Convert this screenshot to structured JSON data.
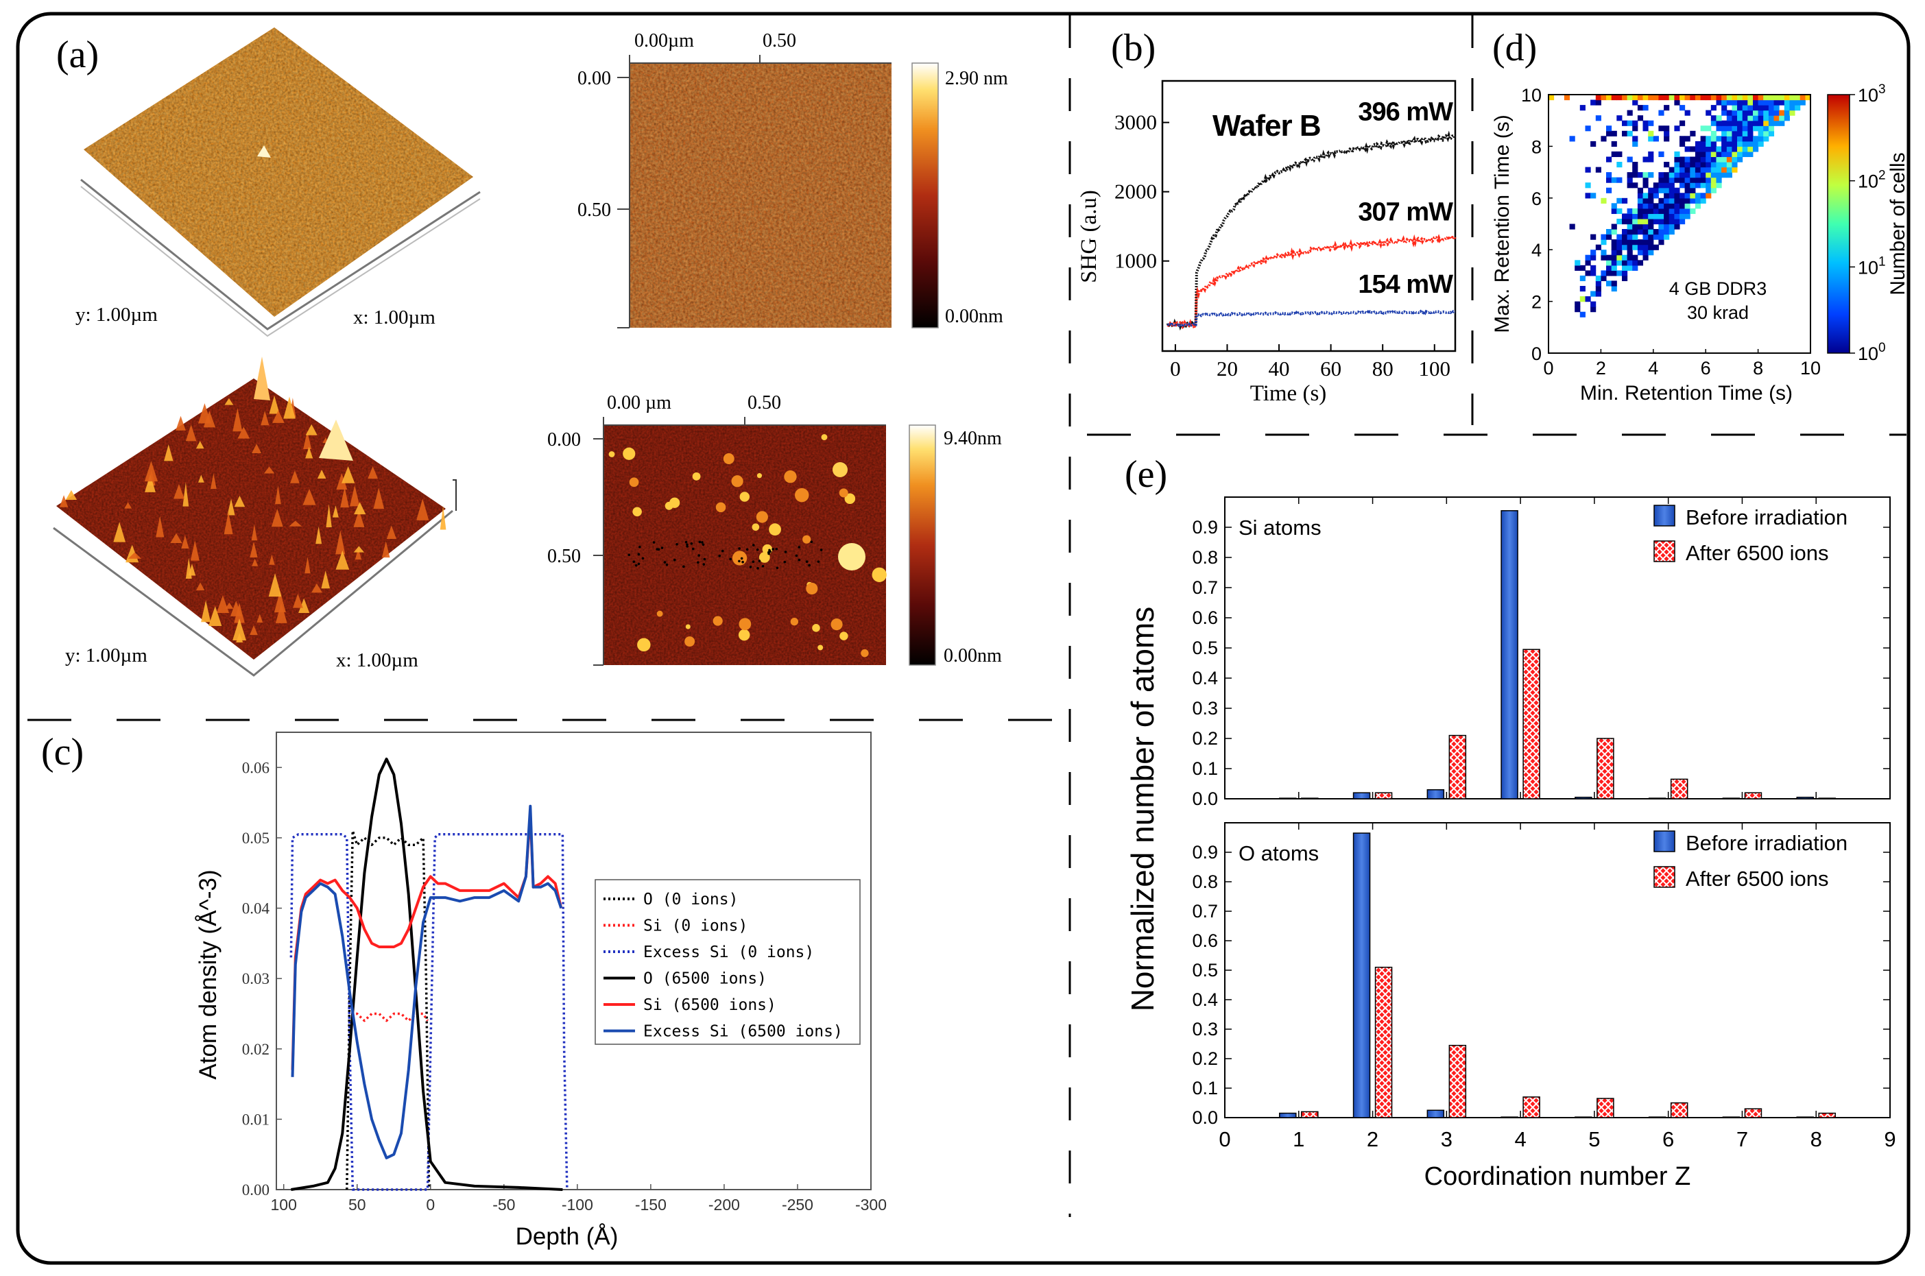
{
  "panels": {
    "a": {
      "label": "(a)",
      "top3d": {
        "y_label": "y: 1.00µm",
        "x_label": "x: 1.00µm"
      },
      "bottom3d": {
        "y_label": "y: 1.00µm",
        "x_label": "x: 1.00µm"
      },
      "top_map": {
        "x_ticks": [
          "0.00µm",
          "0.50"
        ],
        "y_ticks": [
          "0.00",
          "0.50"
        ],
        "cbar_max": "2.90 nm",
        "cbar_min": "0.00nm"
      },
      "bottom_map": {
        "x_ticks": [
          "0.00 µm",
          "0.50"
        ],
        "y_ticks": [
          "0.00",
          "0.50"
        ],
        "cbar_max": "9.40nm",
        "cbar_min": "0.00nm"
      }
    },
    "b": {
      "label": "(b)"
    },
    "c": {
      "label": "(c)"
    },
    "d": {
      "label": "(d)"
    },
    "e": {
      "label": "(e)"
    }
  },
  "chart_data": [
    {
      "id": "b",
      "type": "scatter",
      "title": "Wafer B",
      "xlabel": "Time (s)",
      "ylabel": "SHG (a.u)",
      "xlim": [
        -5,
        108
      ],
      "ylim": [
        -300,
        3600
      ],
      "x_ticks": [
        0,
        20,
        40,
        60,
        80,
        100
      ],
      "y_ticks": [
        1000,
        2000,
        3000
      ],
      "series": [
        {
          "name": "396 mW",
          "color": "#111111",
          "onset": 8,
          "base": 80,
          "start": 800,
          "rise": 1650,
          "tau": 18,
          "slope": 3.5
        },
        {
          "name": "307 mW",
          "color": "#ff2a1a",
          "onset": 8,
          "base": 80,
          "start": 520,
          "rise": 700,
          "tau": 25,
          "slope": 1.2
        },
        {
          "name": "154 mW",
          "color": "#1e3fae",
          "onset": 8,
          "base": 80,
          "start": 220,
          "rise": 25,
          "tau": 30,
          "slope": 0.2
        }
      ]
    },
    {
      "id": "d",
      "type": "heatmap",
      "annotation": [
        "4 GB DDR3",
        "30 krad"
      ],
      "xlabel": "Min. Retention Time (s)",
      "ylabel": "Max. Retention Time (s)",
      "xlim": [
        0,
        10
      ],
      "ylim": [
        0,
        10
      ],
      "x_ticks": [
        0,
        2,
        4,
        6,
        8,
        10
      ],
      "y_ticks": [
        0,
        2,
        4,
        6,
        8,
        10
      ],
      "colorbar": {
        "label": "Number of cells",
        "ticks": [
          "10^0",
          "10^1",
          "10^2",
          "10^3"
        ]
      }
    },
    {
      "id": "c",
      "type": "line",
      "xlabel": "Depth (Å)",
      "ylabel": "Atom density (Å^-3)",
      "xlim": [
        105,
        -300
      ],
      "ylim": [
        0,
        0.065
      ],
      "x_ticks": [
        100,
        50,
        0,
        -50,
        -100,
        -150,
        -200,
        -250,
        -300
      ],
      "y_ticks": [
        "0.00",
        "0.01",
        "0.02",
        "0.03",
        "0.04",
        "0.05",
        "0.06"
      ],
      "series": [
        {
          "name": "O (0 ions)",
          "color": "#000000",
          "dash": true,
          "x": [
            57,
            55,
            53,
            50,
            45,
            40,
            35,
            30,
            25,
            20,
            15,
            10,
            5,
            3,
            1
          ],
          "y": [
            0,
            0.03,
            0.051,
            0.049,
            0.05,
            0.049,
            0.05,
            0.05,
            0.049,
            0.05,
            0.049,
            0.049,
            0.05,
            0.03,
            0
          ]
        },
        {
          "name": "Si (0 ions)",
          "color": "#ff2020",
          "dash": true,
          "x": [
            54,
            50,
            45,
            40,
            35,
            30,
            25,
            20,
            15,
            10,
            5,
            2
          ],
          "y": [
            0.025,
            0.025,
            0.024,
            0.025,
            0.025,
            0.024,
            0.025,
            0.025,
            0.024,
            0.025,
            0.025,
            0.024
          ]
        },
        {
          "name": "Excess Si (0 ions)",
          "color": "#2030c0",
          "dash": true,
          "x": [
            95,
            94,
            90,
            60,
            57,
            55,
            53,
            2,
            0,
            -3,
            -5,
            -90,
            -91,
            -93
          ],
          "y": [
            0.033,
            0.05,
            0.0505,
            0.0505,
            0.05,
            0.02,
            0,
            0,
            0.02,
            0.05,
            0.0505,
            0.0505,
            0.02,
            0
          ]
        },
        {
          "name": "O (6500 ions)",
          "color": "#000000",
          "dash": false,
          "x": [
            95,
            80,
            70,
            65,
            60,
            55,
            50,
            45,
            40,
            35,
            30,
            25,
            20,
            15,
            10,
            5,
            0,
            -10,
            -30,
            -60,
            -90
          ],
          "y": [
            0,
            0.0005,
            0.001,
            0.003,
            0.008,
            0.02,
            0.033,
            0.045,
            0.053,
            0.059,
            0.0612,
            0.059,
            0.052,
            0.042,
            0.028,
            0.014,
            0.004,
            0.001,
            0.0005,
            0.0003,
            0
          ]
        },
        {
          "name": "Si (6500 ions)",
          "color": "#ff2020",
          "dash": false,
          "x": [
            94,
            92,
            88,
            85,
            80,
            75,
            70,
            65,
            60,
            55,
            50,
            45,
            40,
            35,
            30,
            25,
            20,
            15,
            10,
            5,
            0,
            -5,
            -10,
            -20,
            -30,
            -40,
            -50,
            -60,
            -65,
            -68,
            -70,
            -75,
            -80,
            -85,
            -89
          ],
          "y": [
            0.017,
            0.033,
            0.04,
            0.042,
            0.043,
            0.044,
            0.0435,
            0.044,
            0.0425,
            0.0415,
            0.04,
            0.037,
            0.035,
            0.0345,
            0.0345,
            0.0345,
            0.035,
            0.037,
            0.04,
            0.043,
            0.0445,
            0.0435,
            0.0435,
            0.0425,
            0.0425,
            0.0425,
            0.0435,
            0.0415,
            0.0445,
            0.0535,
            0.043,
            0.0435,
            0.0445,
            0.0435,
            0.04
          ]
        },
        {
          "name": "Excess Si (6500 ions)",
          "color": "#1a4bb0",
          "dash": false,
          "x": [
            94,
            92,
            88,
            85,
            80,
            75,
            70,
            65,
            60,
            55,
            50,
            45,
            40,
            35,
            30,
            25,
            20,
            15,
            10,
            5,
            0,
            -5,
            -10,
            -20,
            -30,
            -40,
            -50,
            -60,
            -65,
            -68,
            -70,
            -75,
            -80,
            -85,
            -89
          ],
          "y": [
            0.016,
            0.032,
            0.0395,
            0.0415,
            0.0425,
            0.0435,
            0.043,
            0.042,
            0.036,
            0.028,
            0.021,
            0.015,
            0.01,
            0.007,
            0.0045,
            0.005,
            0.008,
            0.017,
            0.029,
            0.038,
            0.0415,
            0.0415,
            0.0415,
            0.041,
            0.0415,
            0.0415,
            0.0425,
            0.041,
            0.0445,
            0.0545,
            0.043,
            0.043,
            0.0435,
            0.0425,
            0.04
          ]
        }
      ]
    },
    {
      "id": "e",
      "type": "bar",
      "xlabel": "Coordination number Z",
      "ylabel": "Normalized number of atoms",
      "xlim": [
        0,
        9
      ],
      "x_ticks": [
        0,
        1,
        2,
        3,
        4,
        5,
        6,
        7,
        8,
        9
      ],
      "ylim": [
        0,
        1.0
      ],
      "y_ticks": [
        "0.0",
        "0.1",
        "0.2",
        "0.3",
        "0.4",
        "0.5",
        "0.6",
        "0.7",
        "0.8",
        "0.9"
      ],
      "legend": [
        "Before irradiation",
        "After 6500 ions"
      ],
      "subplots": [
        {
          "label": "Si atoms",
          "categories": [
            1,
            2,
            3,
            4,
            5,
            6,
            7,
            8
          ],
          "series": [
            {
              "name": "Before irradiation",
              "values": [
                0.002,
                0.02,
                0.03,
                0.955,
                0.005,
                0.002,
                0.002,
                0.005
              ]
            },
            {
              "name": "After 6500 ions",
              "values": [
                0.002,
                0.02,
                0.21,
                0.495,
                0.2,
                0.065,
                0.02,
                0.002
              ]
            }
          ]
        },
        {
          "label": "O atoms",
          "categories": [
            1,
            2,
            3,
            4,
            5,
            6,
            7,
            8
          ],
          "series": [
            {
              "name": "Before irradiation",
              "values": [
                0.015,
                0.965,
                0.025,
                0.002,
                0.002,
                0.002,
                0.002,
                0.002
              ]
            },
            {
              "name": "After 6500 ions",
              "values": [
                0.02,
                0.51,
                0.245,
                0.07,
                0.065,
                0.05,
                0.03,
                0.015
              ]
            }
          ]
        }
      ]
    }
  ]
}
